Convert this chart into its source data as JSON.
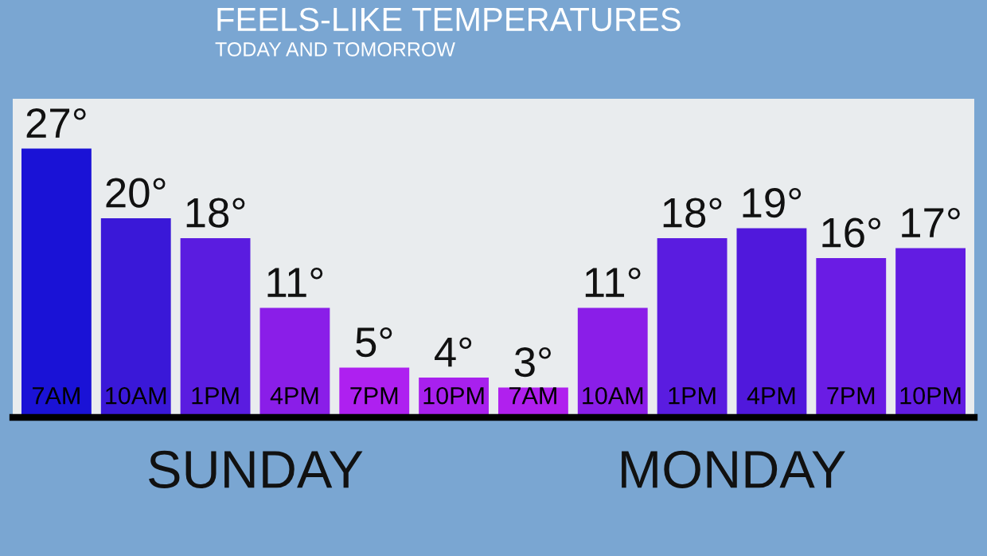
{
  "chart_data": {
    "type": "bar",
    "title": "FEELS-LIKE TEMPERATURES",
    "subtitle": "TODAY AND TOMORROW",
    "categories": [
      "7AM",
      "10AM",
      "1PM",
      "4PM",
      "7PM",
      "10PM",
      "7AM",
      "10AM",
      "1PM",
      "4PM",
      "7PM",
      "10PM"
    ],
    "values": [
      27,
      20,
      18,
      11,
      5,
      4,
      3,
      11,
      18,
      19,
      16,
      17
    ],
    "value_labels": [
      "27°",
      "20°",
      "18°",
      "11°",
      "5°",
      "4°",
      "3°",
      "11°",
      "18°",
      "19°",
      "16°",
      "17°"
    ],
    "colors": [
      "#1a12d6",
      "#3a18d8",
      "#5a1ce0",
      "#8a1ee8",
      "#ae20f0",
      "#a820ee",
      "#b020ee",
      "#8a1ee8",
      "#5a1ce0",
      "#5018dc",
      "#6a1ce4",
      "#621ce2"
    ],
    "ylim": [
      0,
      32
    ],
    "tick_labels": "x",
    "grid": false,
    "legend": false,
    "annotations": [
      "SUNDAY",
      "MONDAY"
    ]
  }
}
